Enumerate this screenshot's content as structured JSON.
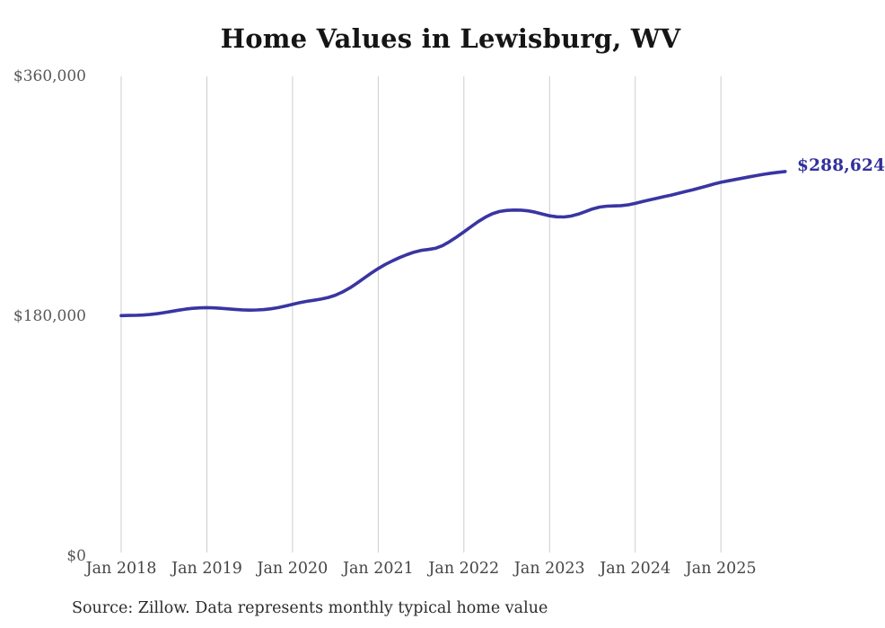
{
  "page": {
    "background": "#ffffff"
  },
  "chart_data": {
    "type": "line",
    "title": "Home Values in Lewisburg, WV",
    "series_name": "Monthly typical home value",
    "x": [
      "2018-01",
      "2018-02",
      "2018-03",
      "2018-04",
      "2018-05",
      "2018-06",
      "2018-07",
      "2018-08",
      "2018-09",
      "2018-10",
      "2018-11",
      "2018-12",
      "2019-01",
      "2019-02",
      "2019-03",
      "2019-04",
      "2019-05",
      "2019-06",
      "2019-07",
      "2019-08",
      "2019-09",
      "2019-10",
      "2019-11",
      "2019-12",
      "2020-01",
      "2020-02",
      "2020-03",
      "2020-04",
      "2020-05",
      "2020-06",
      "2020-07",
      "2020-08",
      "2020-09",
      "2020-10",
      "2020-11",
      "2020-12",
      "2021-01",
      "2021-02",
      "2021-03",
      "2021-04",
      "2021-05",
      "2021-06",
      "2021-07",
      "2021-08",
      "2021-09",
      "2021-10",
      "2021-11",
      "2021-12",
      "2022-01",
      "2022-02",
      "2022-03",
      "2022-04",
      "2022-05",
      "2022-06",
      "2022-07",
      "2022-08",
      "2022-09",
      "2022-10",
      "2022-11",
      "2022-12",
      "2023-01",
      "2023-02",
      "2023-03",
      "2023-04",
      "2023-05",
      "2023-06",
      "2023-07",
      "2023-08",
      "2023-09",
      "2023-10",
      "2023-11",
      "2023-12",
      "2024-01",
      "2024-02",
      "2024-03",
      "2024-04",
      "2024-05",
      "2024-06",
      "2024-07",
      "2024-08",
      "2024-09",
      "2024-10",
      "2024-11",
      "2024-12",
      "2025-01",
      "2025-02",
      "2025-03",
      "2025-04",
      "2025-05",
      "2025-06",
      "2025-07",
      "2025-08",
      "2025-09",
      "2025-10"
    ],
    "values": [
      180500,
      180600,
      180700,
      180900,
      181300,
      181900,
      182700,
      183600,
      184500,
      185300,
      185900,
      186300,
      186500,
      186300,
      185900,
      185500,
      185100,
      184800,
      184600,
      184700,
      185000,
      185600,
      186500,
      187700,
      189000,
      190200,
      191200,
      192000,
      192900,
      194100,
      195800,
      198200,
      201200,
      204700,
      208500,
      212300,
      215800,
      218900,
      221600,
      224000,
      226200,
      228100,
      229400,
      230100,
      231000,
      233000,
      236000,
      239500,
      243300,
      247200,
      251000,
      254300,
      256900,
      258600,
      259400,
      259700,
      259600,
      259100,
      258100,
      256700,
      255400,
      254600,
      254500,
      255200,
      256600,
      258500,
      260500,
      261900,
      262600,
      262800,
      263000,
      263600,
      264700,
      266000,
      267300,
      268500,
      269700,
      270900,
      272200,
      273500,
      274800,
      276200,
      277700,
      279200,
      280500,
      281600,
      282600,
      283600,
      284600,
      285600,
      286500,
      287300,
      288000,
      288624
    ],
    "last_value": 288624,
    "end_label": "$288,624",
    "ylim": [
      0,
      360000
    ],
    "y_ticks": [
      {
        "label": "$360,000",
        "value": 360000
      },
      {
        "label": "$180,000",
        "value": 180000
      },
      {
        "label": "$0",
        "value": 0
      }
    ],
    "x_ticks": [
      {
        "label": "Jan 2018",
        "month_index": 0
      },
      {
        "label": "Jan 2019",
        "month_index": 12
      },
      {
        "label": "Jan 2020",
        "month_index": 24
      },
      {
        "label": "Jan 2021",
        "month_index": 36
      },
      {
        "label": "Jan 2022",
        "month_index": 48
      },
      {
        "label": "Jan 2023",
        "month_index": 60
      },
      {
        "label": "Jan 2024",
        "month_index": 72
      },
      {
        "label": "Jan 2025",
        "month_index": 84
      }
    ],
    "grid": "vertical-only",
    "legend": "none",
    "line_color": "#3a35a2",
    "accent_color": "#32309d",
    "grid_color": "#cdcdcd",
    "source_note": "Source: Zillow. Data represents monthly typical home value"
  }
}
